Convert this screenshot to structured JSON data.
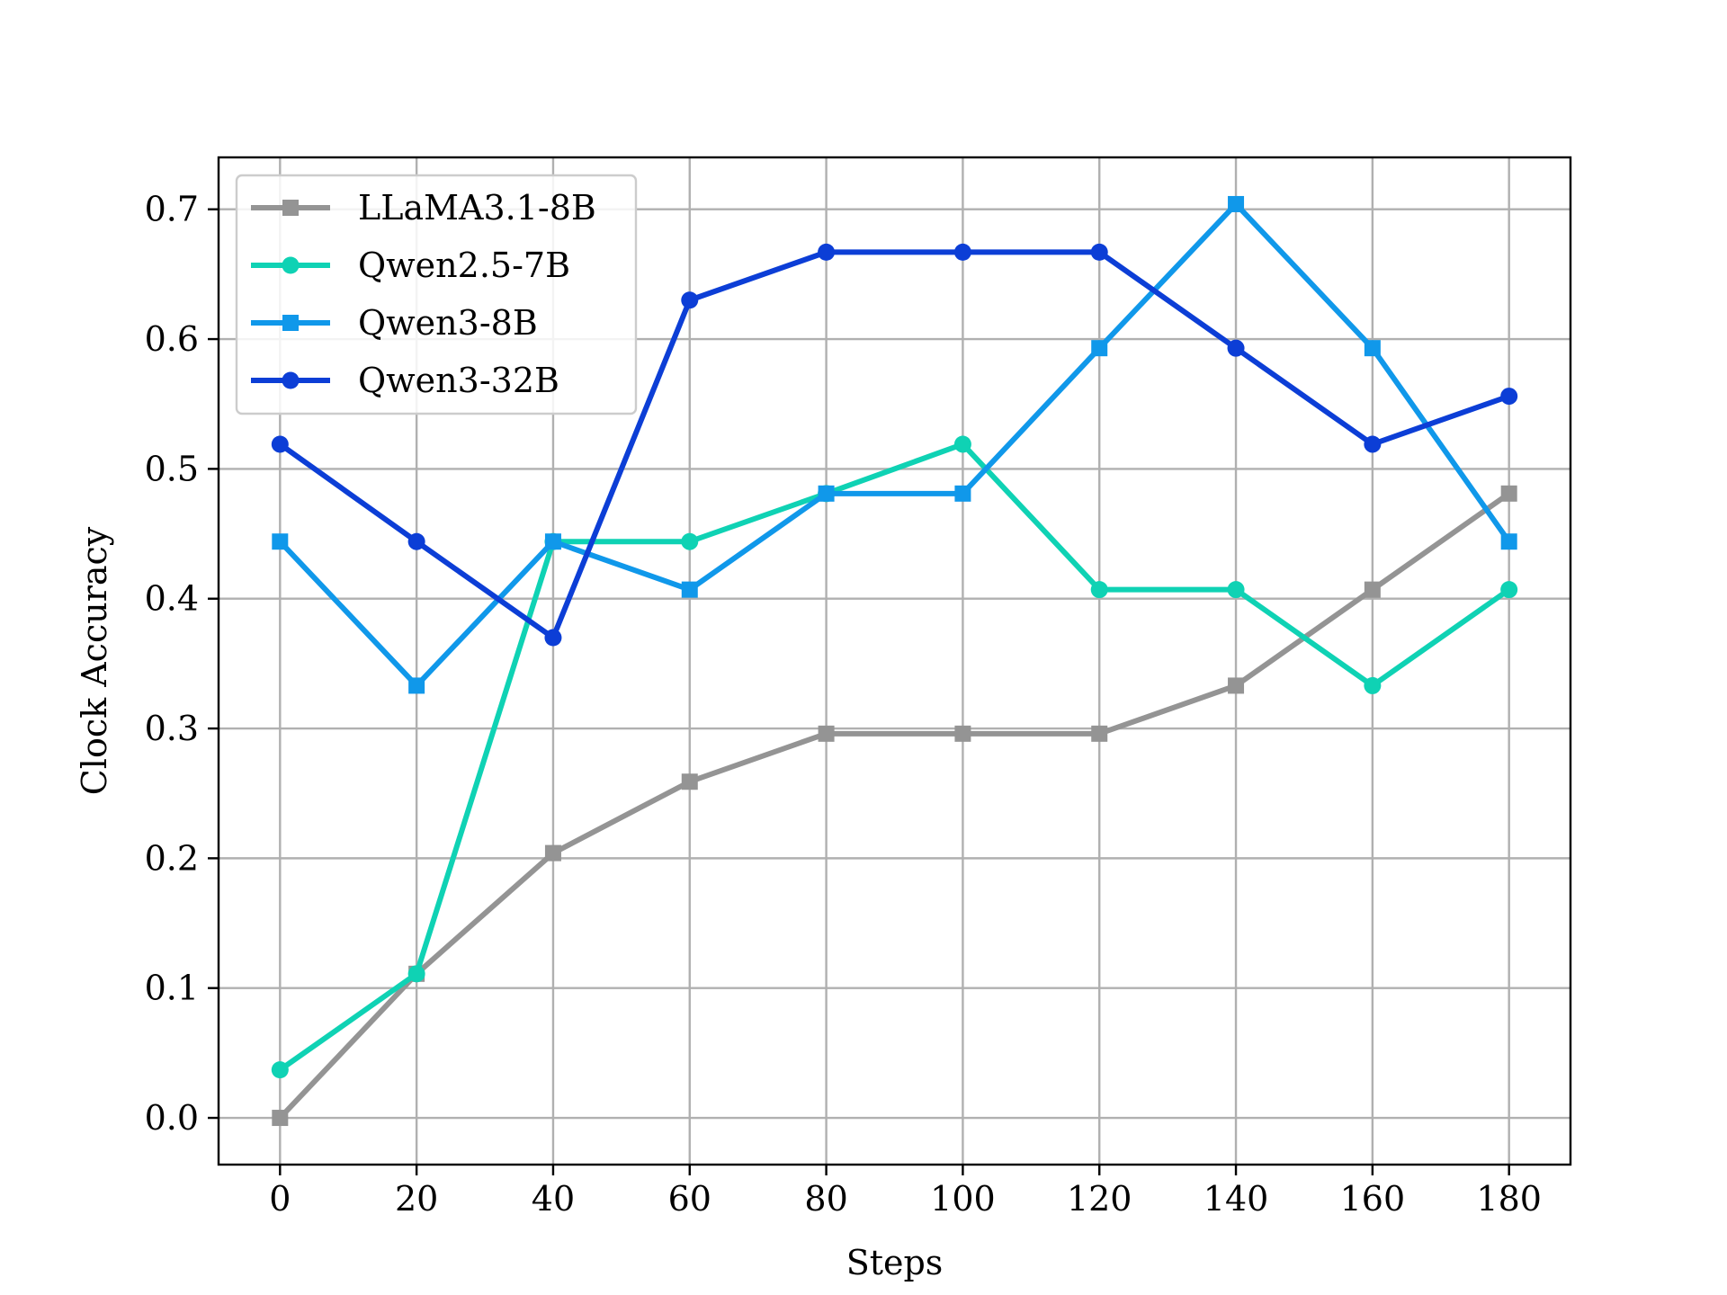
{
  "chart_data": {
    "type": "line",
    "title": "",
    "xlabel": "Steps",
    "ylabel": "Clock Accuracy",
    "x": [
      0,
      20,
      40,
      60,
      80,
      100,
      120,
      140,
      160,
      180
    ],
    "xlim": [
      -9,
      189
    ],
    "ylim": [
      -0.036,
      0.74
    ],
    "xticks": [
      0,
      20,
      40,
      60,
      80,
      100,
      120,
      140,
      160,
      180
    ],
    "yticks": [
      0.0,
      0.1,
      0.2,
      0.3,
      0.4,
      0.5,
      0.6,
      0.7
    ],
    "xtick_labels": [
      "0",
      "20",
      "40",
      "60",
      "80",
      "100",
      "120",
      "140",
      "160",
      "180"
    ],
    "ytick_labels": [
      "0.0",
      "0.1",
      "0.2",
      "0.3",
      "0.4",
      "0.5",
      "0.6",
      "0.7"
    ],
    "grid": true,
    "legend_position": "top-left",
    "series": [
      {
        "name": "LLaMA3.1-8B",
        "color": "#949494",
        "marker": "square",
        "values": [
          0.0,
          0.111,
          0.204,
          0.259,
          0.296,
          0.296,
          0.296,
          0.333,
          0.407,
          0.481
        ]
      },
      {
        "name": "Qwen2.5-7B",
        "color": "#0fd2b4",
        "marker": "circle",
        "values": [
          0.037,
          0.111,
          0.444,
          0.444,
          0.481,
          0.519,
          0.407,
          0.407,
          0.333,
          0.407
        ]
      },
      {
        "name": "Qwen3-8B",
        "color": "#1098ea",
        "marker": "square",
        "values": [
          0.444,
          0.333,
          0.444,
          0.407,
          0.481,
          0.481,
          0.593,
          0.704,
          0.593,
          0.444
        ]
      },
      {
        "name": "Qwen3-32B",
        "color": "#0c3ed6",
        "marker": "circle",
        "values": [
          0.519,
          0.444,
          0.37,
          0.63,
          0.667,
          0.667,
          0.667,
          0.593,
          0.519,
          0.556
        ]
      }
    ]
  }
}
